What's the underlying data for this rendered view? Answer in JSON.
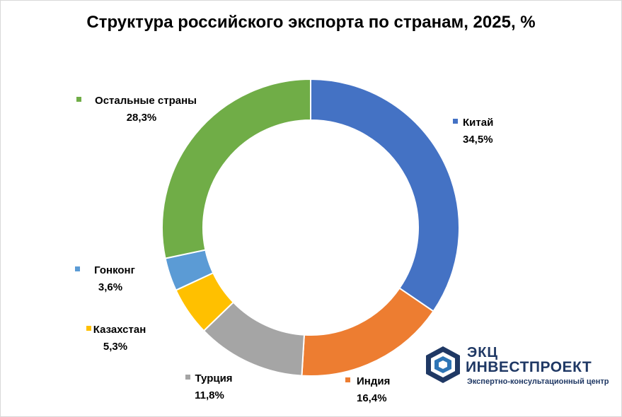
{
  "chart_data": {
    "type": "pie",
    "variant": "donut",
    "title": "Структура российского экспорта по странам, 2025, %",
    "legend_placement": "labels-around",
    "slices": [
      {
        "name": "Китай",
        "value": 34.5,
        "label": "34,5%",
        "color": "#4472c4"
      },
      {
        "name": "Индия",
        "value": 16.4,
        "label": "16,4%",
        "color": "#ed7d31"
      },
      {
        "name": "Турция",
        "value": 11.8,
        "label": "11,8%",
        "color": "#a5a5a5"
      },
      {
        "name": "Казахстан",
        "value": 5.3,
        "label": "5,3%",
        "color": "#ffc000"
      },
      {
        "name": "Гонконг",
        "value": 3.6,
        "label": "3,6%",
        "color": "#5b9bd5"
      },
      {
        "name": "Остальные страны",
        "value": 28.3,
        "label": "28,3%",
        "color": "#70ad47"
      }
    ]
  },
  "logo": {
    "line1": "ЭКЦ",
    "line2": "ИНВЕСТПРОЕКТ",
    "line3": "Экспертно-консультационный центр",
    "color": "#1f3864",
    "accent": "#2e75b6"
  }
}
